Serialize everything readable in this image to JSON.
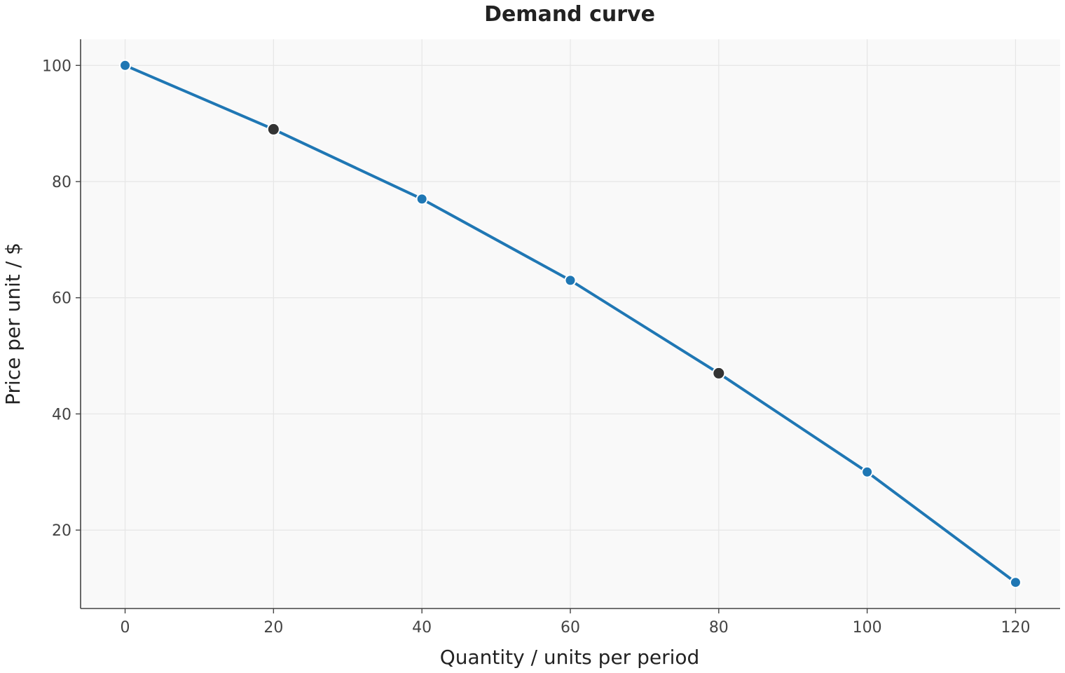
{
  "chart_data": {
    "type": "line",
    "title": "Demand curve",
    "xlabel": "Quantity / units per period",
    "ylabel": "Price per unit / $",
    "xlim": [
      -6,
      126
    ],
    "ylim": [
      6.5,
      104.5
    ],
    "xticks": [
      0,
      20,
      40,
      60,
      80,
      100,
      120
    ],
    "yticks": [
      20,
      40,
      60,
      80,
      100
    ],
    "grid": true,
    "colors": {
      "line": "#1f77b4",
      "highlight": "#333333",
      "plot_background": "#f9f9f9"
    },
    "series": [
      {
        "x": [
          0,
          20,
          40,
          60,
          80,
          100,
          120
        ],
        "y": [
          100,
          89,
          77,
          63,
          47,
          30,
          11
        ],
        "highlighted": [
          false,
          true,
          false,
          false,
          true,
          false,
          false
        ]
      }
    ]
  }
}
